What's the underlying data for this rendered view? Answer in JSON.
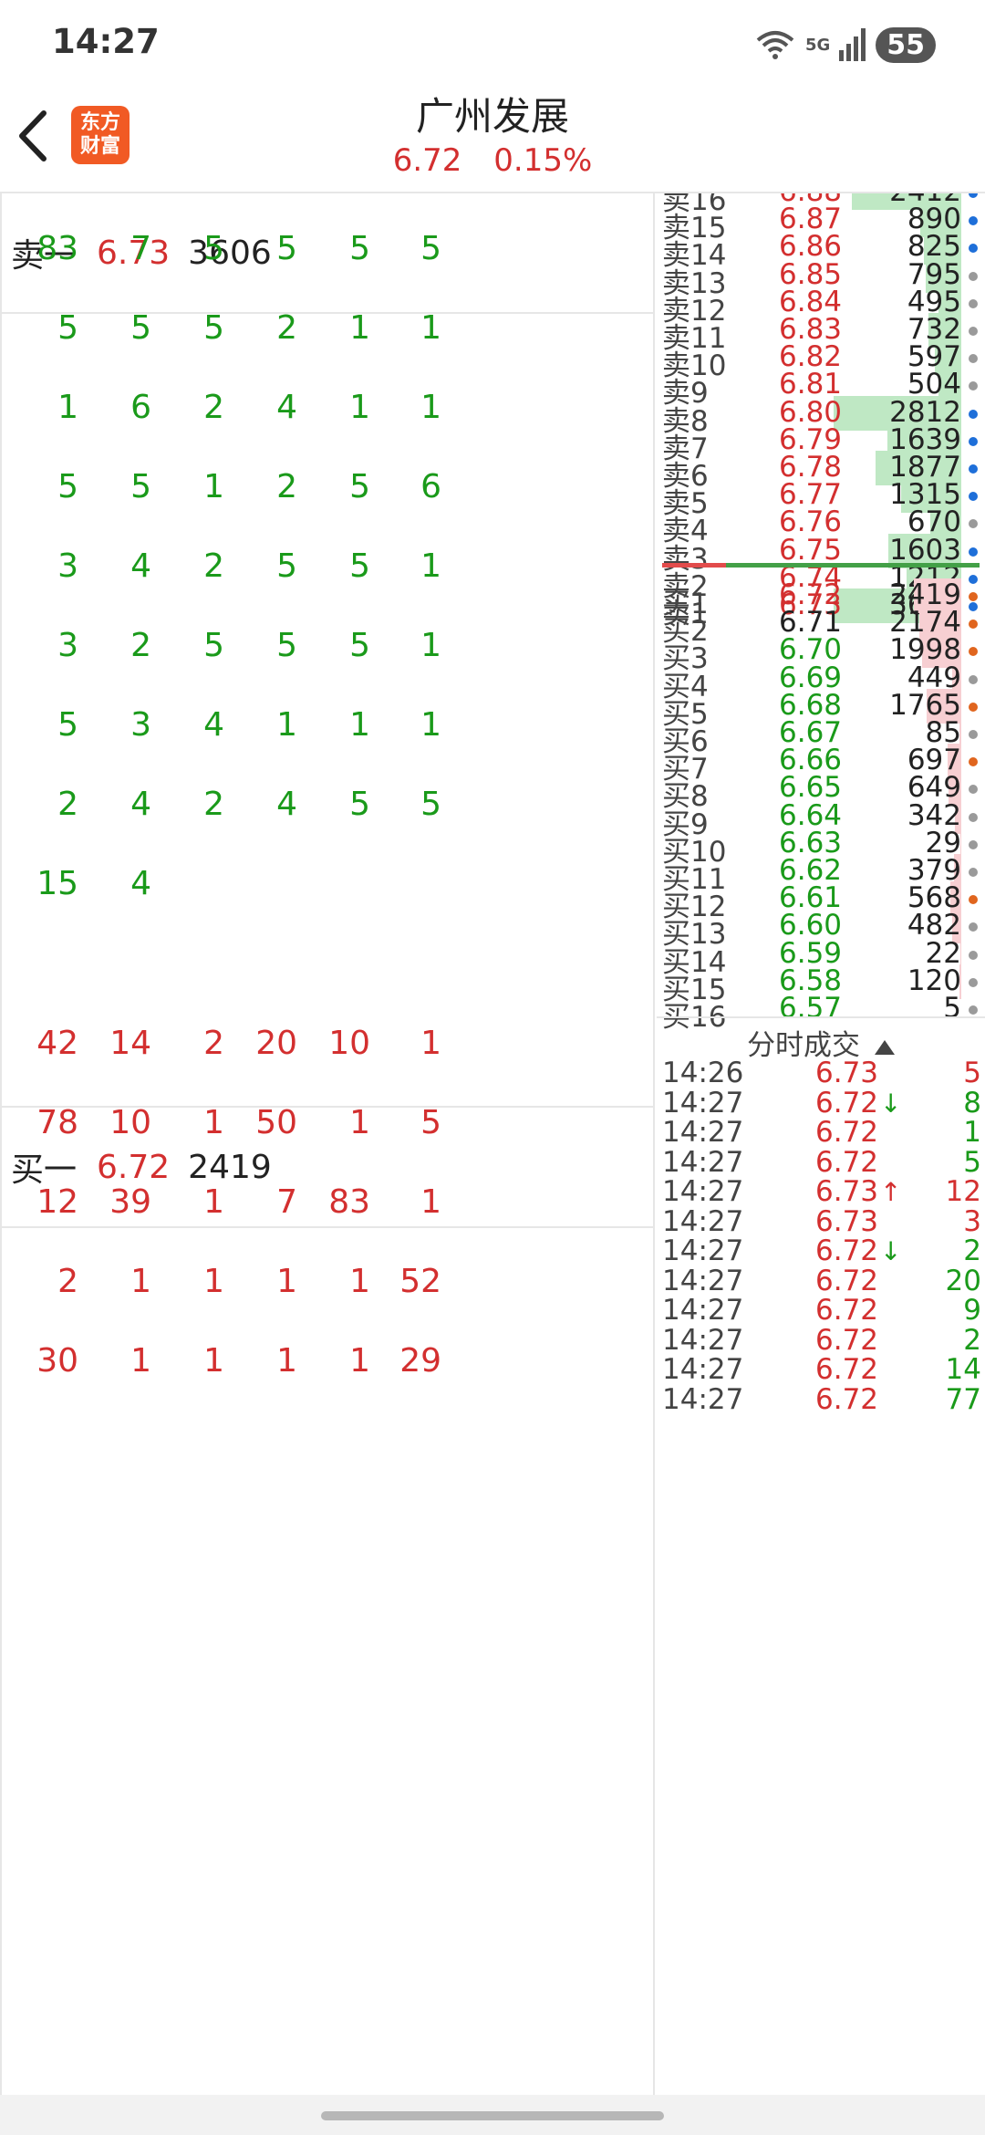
{
  "status_bar": {
    "time": "14:27",
    "wifi_badge": "6",
    "network": "5G",
    "battery": "55"
  },
  "header": {
    "title": "广州发展",
    "price": "6.72",
    "change_pct": "0.15%",
    "logo_line1": "东方",
    "logo_line2": "财富"
  },
  "left": {
    "ask1": {
      "label": "卖一",
      "price": "6.73",
      "volume": "3606"
    },
    "bid1": {
      "label": "买一",
      "price": "6.72",
      "volume": "2419"
    },
    "ask_queue": [
      [
        "83",
        "7",
        "5",
        "5",
        "5",
        "5"
      ],
      [
        "5",
        "5",
        "5",
        "2",
        "1",
        "1"
      ],
      [
        "1",
        "6",
        "2",
        "4",
        "1",
        "1"
      ],
      [
        "5",
        "5",
        "1",
        "2",
        "5",
        "6"
      ],
      [
        "3",
        "4",
        "2",
        "5",
        "5",
        "1"
      ],
      [
        "3",
        "2",
        "5",
        "5",
        "5",
        "1"
      ],
      [
        "5",
        "3",
        "4",
        "1",
        "1",
        "1"
      ],
      [
        "2",
        "4",
        "2",
        "4",
        "5",
        "5"
      ],
      [
        "15",
        "4"
      ]
    ],
    "bid_queue": [
      [
        "42",
        "14",
        "2",
        "20",
        "10",
        "1"
      ],
      [
        "78",
        "10",
        "1",
        "50",
        "1",
        "5"
      ],
      [
        "12",
        "39",
        "1",
        "7",
        "83",
        "1"
      ],
      [
        "2",
        "1",
        "1",
        "1",
        "1",
        "52"
      ],
      [
        "30",
        "1",
        "1",
        "1",
        "1",
        "29"
      ]
    ]
  },
  "order_book": {
    "asks": [
      {
        "label": "卖16",
        "price": "6.88",
        "volume": "2412",
        "bar": 0.86,
        "dot": "blue"
      },
      {
        "label": "卖15",
        "price": "6.87",
        "volume": "890",
        "bar": 0.32,
        "dot": "blue"
      },
      {
        "label": "卖14",
        "price": "6.86",
        "volume": "825",
        "bar": 0.29,
        "dot": "blue"
      },
      {
        "label": "卖13",
        "price": "6.85",
        "volume": "795",
        "bar": 0.28,
        "dot": "gray"
      },
      {
        "label": "卖12",
        "price": "6.84",
        "volume": "495",
        "bar": 0.18,
        "dot": "gray"
      },
      {
        "label": "卖11",
        "price": "6.83",
        "volume": "732",
        "bar": 0.26,
        "dot": "gray"
      },
      {
        "label": "卖10",
        "price": "6.82",
        "volume": "597",
        "bar": 0.21,
        "dot": "gray"
      },
      {
        "label": "卖9",
        "price": "6.81",
        "volume": "504",
        "bar": 0.18,
        "dot": "gray"
      },
      {
        "label": "卖8",
        "price": "6.80",
        "volume": "2812",
        "bar": 1.0,
        "dot": "blue"
      },
      {
        "label": "卖7",
        "price": "6.79",
        "volume": "1639",
        "bar": 0.58,
        "dot": "blue"
      },
      {
        "label": "卖6",
        "price": "6.78",
        "volume": "1877",
        "bar": 0.67,
        "dot": "blue"
      },
      {
        "label": "卖5",
        "price": "6.77",
        "volume": "1315",
        "bar": 0.47,
        "dot": "blue"
      },
      {
        "label": "卖4",
        "price": "6.76",
        "volume": "670",
        "bar": 0.24,
        "dot": "gray"
      },
      {
        "label": "卖3",
        "price": "6.75",
        "volume": "1603",
        "bar": 0.57,
        "dot": "blue"
      },
      {
        "label": "卖2",
        "price": "6.74",
        "volume": "1212",
        "bar": 0.43,
        "dot": "blue"
      },
      {
        "label": "卖1",
        "price": "6.73",
        "volume": "3606",
        "bar": 1.0,
        "dot": "blue"
      }
    ],
    "bids": [
      {
        "label": "买1",
        "price": "6.72",
        "volume": "2419",
        "bar": 0.86,
        "dot": "orange",
        "color": "red"
      },
      {
        "label": "买2",
        "price": "6.71",
        "volume": "2174",
        "bar": 0.77,
        "dot": "orange",
        "color": "black"
      },
      {
        "label": "买3",
        "price": "6.70",
        "volume": "1998",
        "bar": 0.71,
        "dot": "orange",
        "color": "green"
      },
      {
        "label": "买4",
        "price": "6.69",
        "volume": "449",
        "bar": 0.16,
        "dot": "gray",
        "color": "green"
      },
      {
        "label": "买5",
        "price": "6.68",
        "volume": "1765",
        "bar": 0.63,
        "dot": "orange",
        "color": "green"
      },
      {
        "label": "买6",
        "price": "6.67",
        "volume": "85",
        "bar": 0.03,
        "dot": "gray",
        "color": "green"
      },
      {
        "label": "买7",
        "price": "6.66",
        "volume": "697",
        "bar": 0.25,
        "dot": "orange",
        "color": "green"
      },
      {
        "label": "买8",
        "price": "6.65",
        "volume": "649",
        "bar": 0.23,
        "dot": "gray",
        "color": "green"
      },
      {
        "label": "买9",
        "price": "6.64",
        "volume": "342",
        "bar": 0.12,
        "dot": "gray",
        "color": "green"
      },
      {
        "label": "买10",
        "price": "6.63",
        "volume": "29",
        "bar": 0.01,
        "dot": "gray",
        "color": "green"
      },
      {
        "label": "买11",
        "price": "6.62",
        "volume": "379",
        "bar": 0.13,
        "dot": "gray",
        "color": "green"
      },
      {
        "label": "买12",
        "price": "6.61",
        "volume": "568",
        "bar": 0.2,
        "dot": "orange",
        "color": "green"
      },
      {
        "label": "买13",
        "price": "6.60",
        "volume": "482",
        "bar": 0.17,
        "dot": "gray",
        "color": "green"
      },
      {
        "label": "买14",
        "price": "6.59",
        "volume": "22",
        "bar": 0.01,
        "dot": "gray",
        "color": "green"
      },
      {
        "label": "买15",
        "price": "6.58",
        "volume": "120",
        "bar": 0.04,
        "dot": "gray",
        "color": "green"
      },
      {
        "label": "买16",
        "price": "6.57",
        "volume": "5",
        "bar": 0.0,
        "dot": "gray",
        "color": "green"
      }
    ]
  },
  "trades": {
    "title": "分时成交",
    "rows": [
      {
        "time": "14:26",
        "price": "6.73",
        "arrow": "",
        "volume": "5",
        "vol_color": "red"
      },
      {
        "time": "14:27",
        "price": "6.72",
        "arrow": "↓",
        "volume": "8",
        "vol_color": "green"
      },
      {
        "time": "14:27",
        "price": "6.72",
        "arrow": "",
        "volume": "1",
        "vol_color": "green"
      },
      {
        "time": "14:27",
        "price": "6.72",
        "arrow": "",
        "volume": "5",
        "vol_color": "green"
      },
      {
        "time": "14:27",
        "price": "6.73",
        "arrow": "↑",
        "volume": "12",
        "vol_color": "red"
      },
      {
        "time": "14:27",
        "price": "6.73",
        "arrow": "",
        "volume": "3",
        "vol_color": "red"
      },
      {
        "time": "14:27",
        "price": "6.72",
        "arrow": "↓",
        "volume": "2",
        "vol_color": "green"
      },
      {
        "time": "14:27",
        "price": "6.72",
        "arrow": "",
        "volume": "20",
        "vol_color": "green"
      },
      {
        "time": "14:27",
        "price": "6.72",
        "arrow": "",
        "volume": "9",
        "vol_color": "green"
      },
      {
        "time": "14:27",
        "price": "6.72",
        "arrow": "",
        "volume": "2",
        "vol_color": "green"
      },
      {
        "time": "14:27",
        "price": "6.72",
        "arrow": "",
        "volume": "14",
        "vol_color": "green"
      },
      {
        "time": "14:27",
        "price": "6.72",
        "arrow": "",
        "volume": "77",
        "vol_color": "green"
      }
    ]
  },
  "colors": {
    "up": "#d32f2f",
    "down": "#1a9a1a",
    "ask_bar": "#bfe8c4",
    "bid_bar": "#f7cfd2",
    "dot_blue": "#1e6fd9",
    "dot_gray": "#9a9a9a",
    "dot_orange": "#e0651e"
  }
}
